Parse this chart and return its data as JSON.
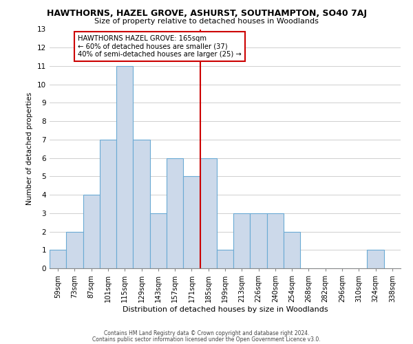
{
  "title": "HAWTHORNS, HAZEL GROVE, ASHURST, SOUTHAMPTON, SO40 7AJ",
  "subtitle": "Size of property relative to detached houses in Woodlands",
  "xlabel": "Distribution of detached houses by size in Woodlands",
  "ylabel": "Number of detached properties",
  "bin_labels": [
    "59sqm",
    "73sqm",
    "87sqm",
    "101sqm",
    "115sqm",
    "129sqm",
    "143sqm",
    "157sqm",
    "171sqm",
    "185sqm",
    "199sqm",
    "213sqm",
    "226sqm",
    "240sqm",
    "254sqm",
    "268sqm",
    "282sqm",
    "296sqm",
    "310sqm",
    "324sqm",
    "338sqm"
  ],
  "bar_heights": [
    1,
    2,
    4,
    7,
    11,
    7,
    3,
    6,
    5,
    6,
    1,
    3,
    3,
    3,
    2,
    0,
    0,
    0,
    0,
    1,
    0
  ],
  "bar_color": "#ccd9ea",
  "bar_edge_color": "#6aaad4",
  "vline_x_idx": 8,
  "vline_color": "#cc0000",
  "annotation_title": "HAWTHORNS HAZEL GROVE: 165sqm",
  "annotation_line1": "← 60% of detached houses are smaller (37)",
  "annotation_line2": "40% of semi-detached houses are larger (25) →",
  "annotation_box_edge": "#cc0000",
  "annotation_box_bg": "#ffffff",
  "ylim": [
    0,
    13
  ],
  "yticks": [
    0,
    1,
    2,
    3,
    4,
    5,
    6,
    7,
    8,
    9,
    10,
    11,
    12,
    13
  ],
  "footnote1": "Contains HM Land Registry data © Crown copyright and database right 2024.",
  "footnote2": "Contains public sector information licensed under the Open Government Licence v3.0.",
  "background_color": "#ffffff",
  "grid_color": "#c8c8c8"
}
